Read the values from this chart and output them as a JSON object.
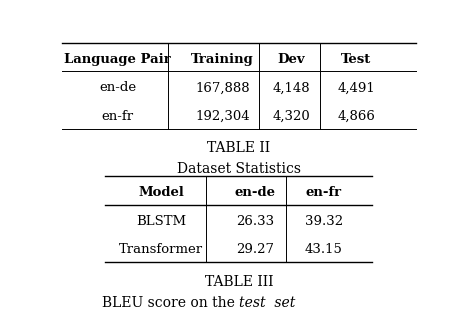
{
  "table1": {
    "headers": [
      "Language Pair",
      "Training",
      "Dev",
      "Test"
    ],
    "rows": [
      [
        "en-de",
        "167,888",
        "4,148",
        "4,491"
      ],
      [
        "en-fr",
        "192,304",
        "4,320",
        "4,866"
      ]
    ],
    "caption_line1": "TABLE II",
    "caption_line2": "Dataset Statistics"
  },
  "table2": {
    "headers": [
      "Model",
      "en-de",
      "en-fr"
    ],
    "rows": [
      [
        "BLSTM",
        "26.33",
        "39.32"
      ],
      [
        "Transformer",
        "29.27",
        "43.15"
      ]
    ],
    "caption_line1": "TABLE III"
  },
  "bg_color": "#ffffff",
  "font_size": 9.5,
  "caption_fontsize": 10.0
}
